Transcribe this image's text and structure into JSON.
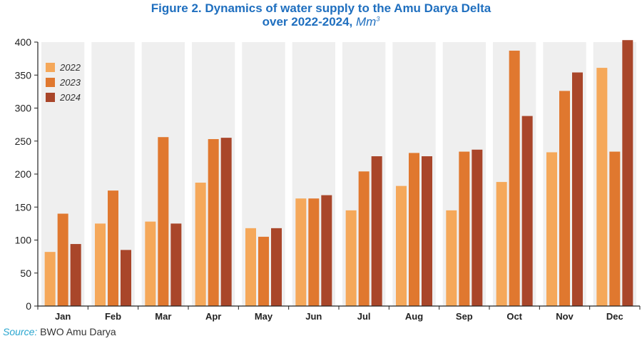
{
  "title": {
    "line1": "Figure 2. Dynamics of water supply to the Amu Darya Delta",
    "line2": "over 2022-2024, ",
    "unit": "Mm",
    "unit_sup": "3"
  },
  "source": {
    "label": "Source:",
    "text": " BWO Amu Darya"
  },
  "chart_data": {
    "type": "bar",
    "categories": [
      "Jan",
      "Feb",
      "Mar",
      "Apr",
      "May",
      "Jun",
      "Jul",
      "Aug",
      "Sep",
      "Oct",
      "Nov",
      "Dec"
    ],
    "series": [
      {
        "name": "2022",
        "color": "#f5a85a",
        "values": [
          82,
          125,
          128,
          187,
          118,
          163,
          145,
          182,
          145,
          188,
          233,
          361
        ]
      },
      {
        "name": "2023",
        "color": "#e0782f",
        "values": [
          140,
          175,
          256,
          253,
          105,
          163,
          204,
          232,
          234,
          387,
          326,
          234
        ]
      },
      {
        "name": "2024",
        "color": "#a9462a",
        "values": [
          94,
          85,
          125,
          255,
          118,
          168,
          227,
          227,
          237,
          288,
          354,
          403
        ]
      }
    ],
    "ylim": [
      0,
      400
    ],
    "yticks": [
      0,
      50,
      100,
      150,
      200,
      250,
      300,
      350,
      400
    ],
    "xlabel": "",
    "ylabel": "",
    "legend_position": "top-left",
    "grid": false,
    "band_color": "#efefef"
  }
}
